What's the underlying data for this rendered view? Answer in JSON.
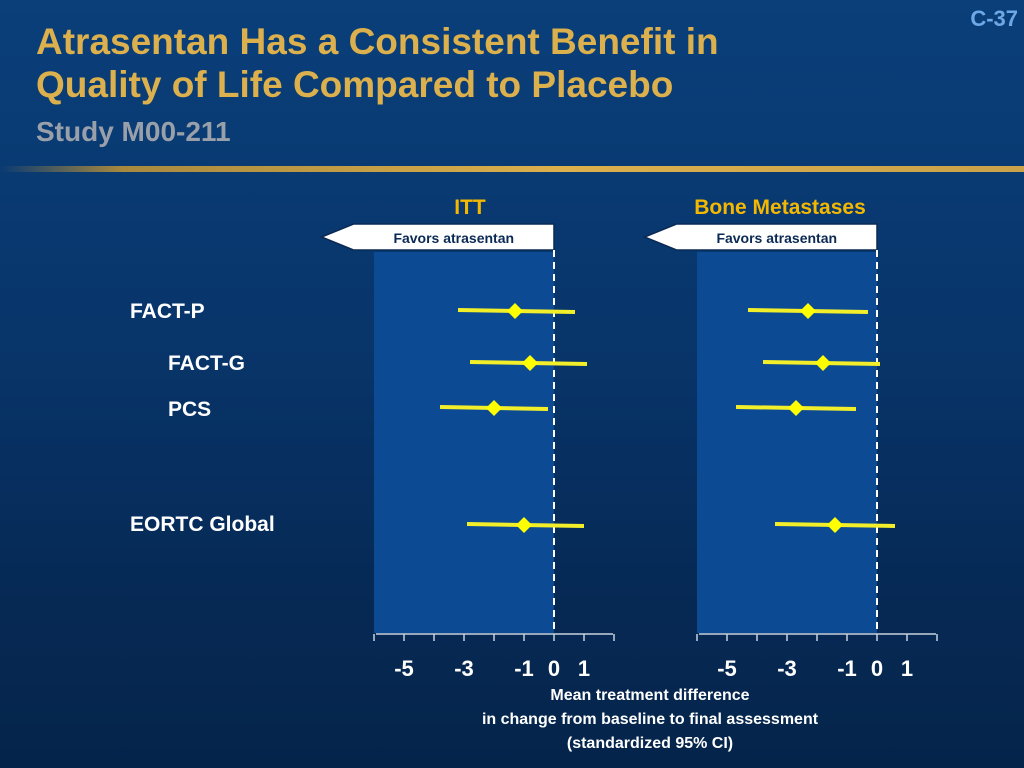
{
  "slide": {
    "number": "C-37",
    "title_line1": "Atrasentan Has a Consistent Benefit in",
    "title_line2": "Quality of Life Compared to Placebo",
    "subtitle": "Study M00-211"
  },
  "colors": {
    "title": "#dcb04c",
    "panel_title": "#f5b800",
    "marker": "#ffff00",
    "ci_line": "#f2ef2a",
    "shaded_region": "#0c4a94"
  },
  "chart_data": [
    {
      "type": "forest",
      "title": "ITT",
      "arrow_label": "Favors atrasentan",
      "xlim": [
        -6,
        2
      ],
      "x_ticks": [
        -5,
        -3,
        -1,
        0,
        1
      ],
      "x_tick_labels": [
        "-5",
        "-3",
        "-1",
        "0",
        "1"
      ],
      "reference_line": 0,
      "shaded_range": [
        -6,
        0
      ],
      "rows": [
        {
          "label": "FACT-P",
          "estimate": -1.3,
          "ci": [
            -3.2,
            0.7
          ]
        },
        {
          "label": "FACT-G",
          "estimate": -0.8,
          "ci": [
            -2.8,
            1.1
          ]
        },
        {
          "label": "PCS",
          "estimate": -2.0,
          "ci": [
            -3.8,
            -0.2
          ]
        },
        {
          "label": "EORTC Global",
          "estimate": -1.0,
          "ci": [
            -2.9,
            1.0
          ]
        }
      ]
    },
    {
      "type": "forest",
      "title": "Bone Metastases",
      "arrow_label": "Favors atrasentan",
      "xlim": [
        -6,
        2
      ],
      "x_ticks": [
        -5,
        -3,
        -1,
        0,
        1
      ],
      "x_tick_labels": [
        "-5",
        "-3",
        "-1",
        "0",
        "1"
      ],
      "reference_line": 0,
      "shaded_range": [
        -6,
        0
      ],
      "rows": [
        {
          "label": "FACT-P",
          "estimate": -2.3,
          "ci": [
            -4.3,
            -0.3
          ]
        },
        {
          "label": "FACT-G",
          "estimate": -1.8,
          "ci": [
            -3.8,
            0.1
          ]
        },
        {
          "label": "PCS",
          "estimate": -2.7,
          "ci": [
            -4.7,
            -0.7
          ]
        },
        {
          "label": "EORTC Global",
          "estimate": -1.4,
          "ci": [
            -3.4,
            0.6
          ]
        }
      ]
    }
  ],
  "row_labels": [
    "FACT-P",
    "FACT-G",
    "PCS",
    "EORTC Global"
  ],
  "x_axis_label": {
    "line1": "Mean treatment difference",
    "line2": "in change from baseline to final assessment",
    "line3": "(standardized 95% CI)"
  }
}
